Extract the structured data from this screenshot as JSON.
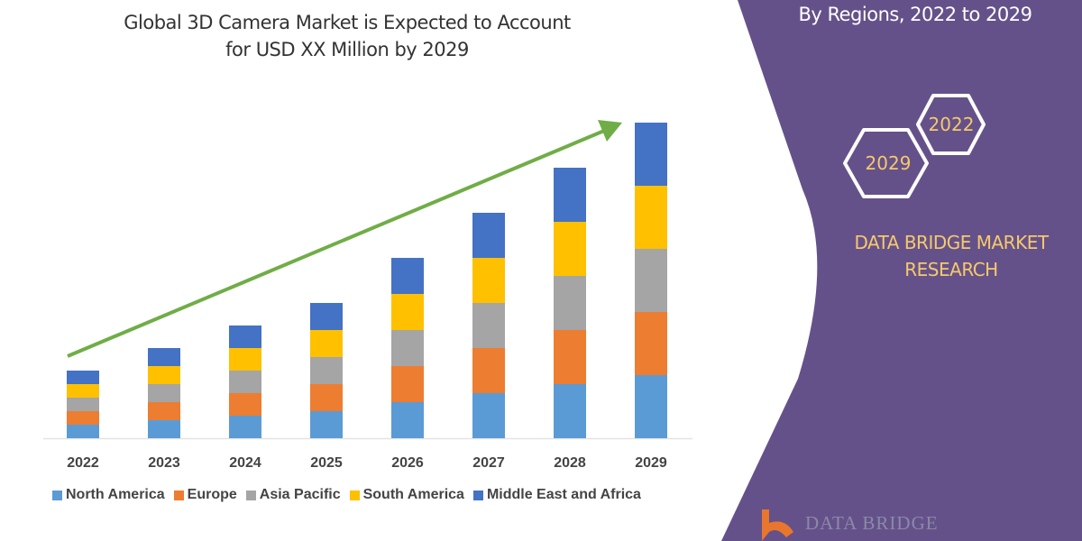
{
  "chart_data": {
    "type": "bar",
    "stacked": true,
    "title": "Global 3D Camera Market is Expected to Account for USD XX Million by 2029",
    "title_lines": [
      "Global 3D Camera Market is Expected to Account",
      "for USD XX Million by 2029"
    ],
    "categories": [
      "2022",
      "2023",
      "2024",
      "2025",
      "2026",
      "2027",
      "2028",
      "2029"
    ],
    "series": [
      {
        "name": "North America",
        "color": "#5b9bd5",
        "values": [
          15,
          20,
          25,
          30,
          40,
          50,
          60,
          70
        ]
      },
      {
        "name": "Europe",
        "color": "#ed7d31",
        "values": [
          15,
          20,
          25,
          30,
          40,
          50,
          60,
          70
        ]
      },
      {
        "name": "Asia Pacific",
        "color": "#a5a5a5",
        "values": [
          15,
          20,
          25,
          30,
          40,
          50,
          60,
          70
        ]
      },
      {
        "name": "South America",
        "color": "#ffc000",
        "values": [
          15,
          20,
          25,
          30,
          40,
          50,
          60,
          70
        ]
      },
      {
        "name": "Middle East and Africa",
        "color": "#4472c4",
        "values": [
          15,
          20,
          25,
          30,
          40,
          50,
          60,
          70
        ]
      }
    ],
    "xlabel": "",
    "ylabel": "",
    "y_axis_shown": false,
    "grid": false,
    "legend_position": "bottom",
    "trend_arrow_color": "#70ad47"
  },
  "side_panel": {
    "title": "By Regions, 2022 to 2029",
    "hex_years": [
      "2022",
      "2029"
    ],
    "brand_lines": [
      "DATA BRIDGE MARKET",
      "RESEARCH"
    ],
    "logo_text": "DATA BRIDGE",
    "panel_color": "#65518a",
    "accent_color": "#f5c96b"
  }
}
